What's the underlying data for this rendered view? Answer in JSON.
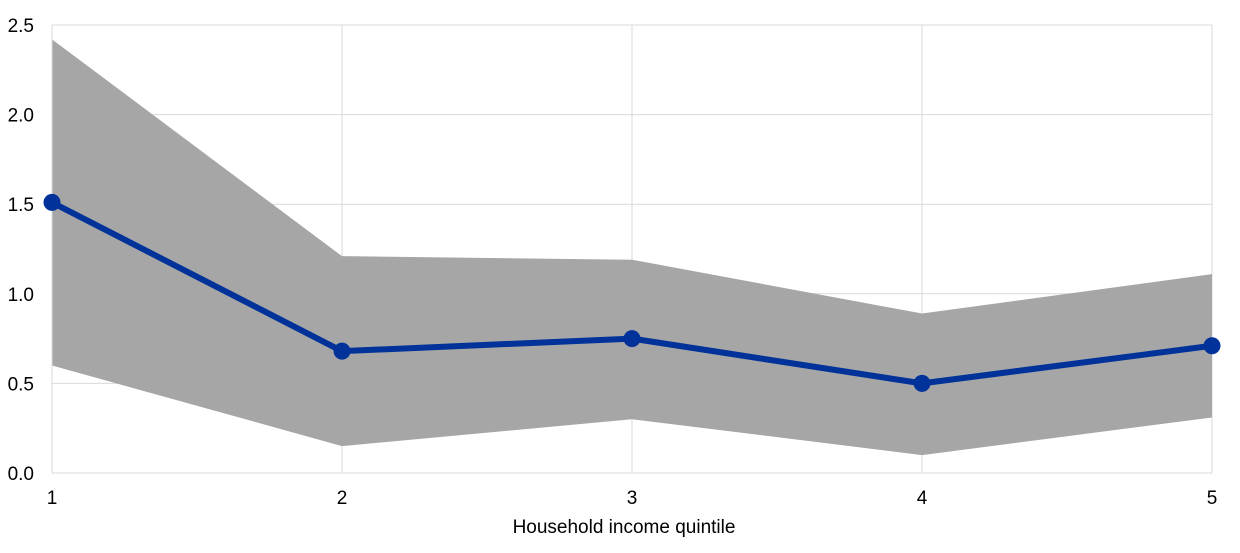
{
  "chart_data": {
    "type": "line",
    "title": "",
    "xlabel": "Household income quintile",
    "ylabel": "",
    "x": [
      1,
      2,
      3,
      4,
      5
    ],
    "xlim": [
      1,
      5
    ],
    "ylim": [
      0,
      2.5
    ],
    "xticks": [
      "1",
      "2",
      "3",
      "4",
      "5"
    ],
    "yticks": [
      "0.0",
      "0.5",
      "1.0",
      "1.5",
      "2.0",
      "2.5"
    ],
    "grid": true,
    "legend": "none",
    "series": [
      {
        "type": "line",
        "values": [
          1.51,
          0.68,
          0.75,
          0.5,
          0.71
        ],
        "color": "#003299",
        "markers": true
      }
    ],
    "band": {
      "type": "area",
      "lower": [
        0.6,
        0.15,
        0.3,
        0.1,
        0.31
      ],
      "upper": [
        2.42,
        1.21,
        1.19,
        0.89,
        1.11
      ],
      "color": "#a6a6a6"
    },
    "gridline_color": "#d9d9d9",
    "axis_color": "#d9d9d9"
  }
}
